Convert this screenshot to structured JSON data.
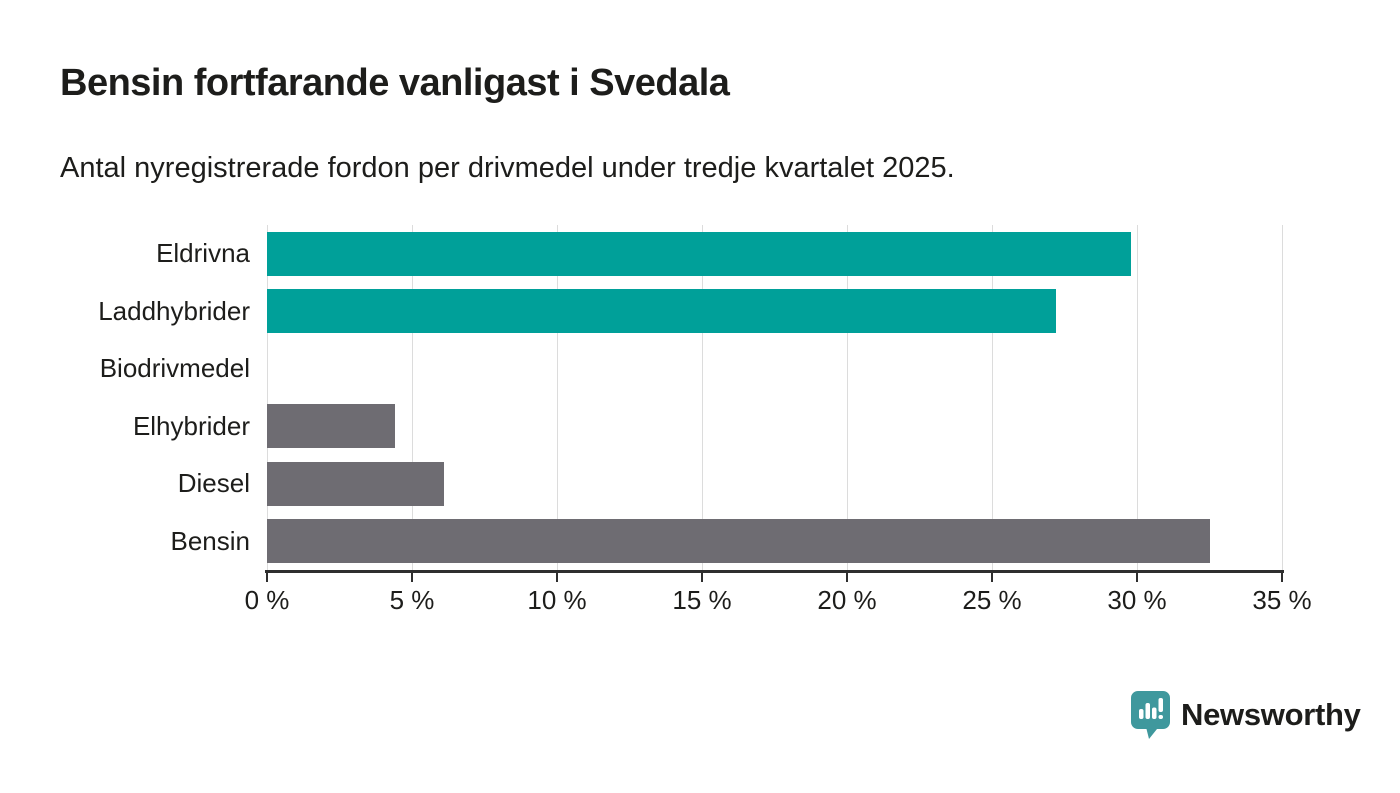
{
  "chart_data": {
    "type": "bar",
    "orientation": "horizontal",
    "title": "Bensin fortfarande vanligast i Svedala",
    "subtitle": "Antal nyregistrerade fordon per drivmedel under tredje kvartalet 2025.",
    "categories": [
      "Eldrivna",
      "Laddhybrider",
      "Biodrivmedel",
      "Elhybrider",
      "Diesel",
      "Bensin"
    ],
    "values": [
      29.8,
      27.2,
      0,
      4.4,
      6.1,
      32.5
    ],
    "value_unit": "%",
    "bar_colors": [
      "#00a099",
      "#00a099",
      "#6e6c72",
      "#6e6c72",
      "#6e6c72",
      "#6e6c72"
    ],
    "xlim": [
      0,
      35
    ],
    "x_ticks": [
      {
        "value": 0,
        "label": "0 %"
      },
      {
        "value": 5,
        "label": "5 %"
      },
      {
        "value": 10,
        "label": "10 %"
      },
      {
        "value": 15,
        "label": "15 %"
      },
      {
        "value": 20,
        "label": "20 %"
      },
      {
        "value": 25,
        "label": "25 %"
      },
      {
        "value": 30,
        "label": "30 %"
      },
      {
        "value": 35,
        "label": "35 %"
      }
    ],
    "grid": "vertical-gridlines-on",
    "legend": "none"
  },
  "colors": {
    "series_teal": "#00a099",
    "series_gray": "#6e6c72",
    "gridline": "#dcdcdc",
    "axis": "#2e2e2e",
    "text": "#1d1d1b",
    "logo_teal": "#3f989d",
    "background": "#ffffff"
  },
  "logo": {
    "text": "Newsworthy",
    "icon": "newsworthy-speech-bubble-bar-chart-icon"
  }
}
